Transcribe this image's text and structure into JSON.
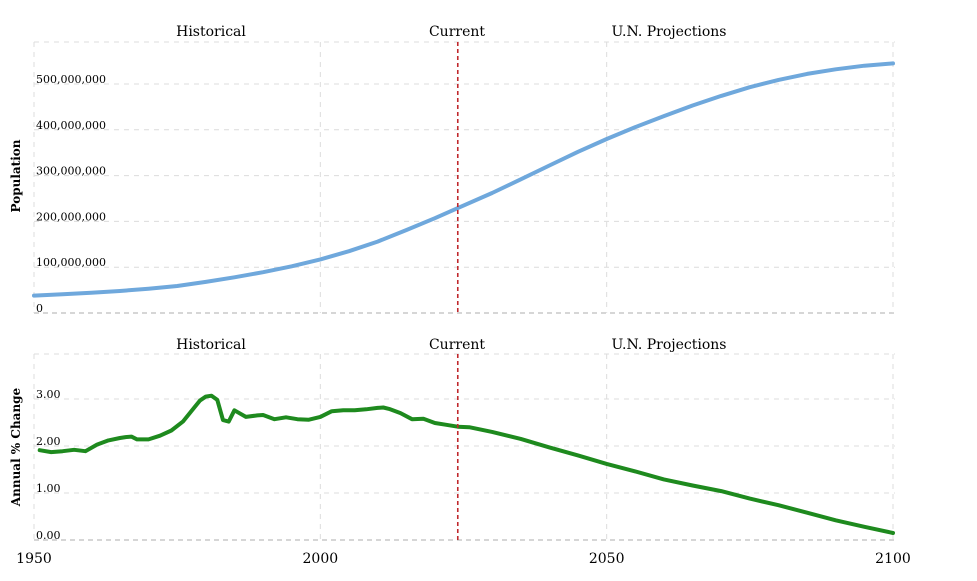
{
  "chart_data": [
    {
      "type": "line",
      "ylabel": "Population",
      "xlim": [
        1950,
        2100
      ],
      "ylim": [
        0,
        600000000
      ],
      "x_ticks": [
        "1950",
        "2000",
        "2050",
        "2100"
      ],
      "y_ticks": [
        {
          "value": 0,
          "label": "0"
        },
        {
          "value": 100000000,
          "label": "100,000,000"
        },
        {
          "value": 200000000,
          "label": "200,000,000"
        },
        {
          "value": 300000000,
          "label": "300,000,000"
        },
        {
          "value": 400000000,
          "label": "400,000,000"
        },
        {
          "value": 500000000,
          "label": "500,000,000"
        }
      ],
      "section_labels": [
        "Historical",
        "Current",
        "U.N. Projections"
      ],
      "current_year": 2024,
      "grid": true,
      "line_color": "#6fa8dc",
      "series": [
        {
          "x": [
            1950,
            1955,
            1960,
            1965,
            1970,
            1975,
            1980,
            1985,
            1990,
            1995,
            2000,
            2005,
            2010,
            2015,
            2020,
            2024,
            2030,
            2035,
            2040,
            2045,
            2050,
            2055,
            2060,
            2065,
            2070,
            2075,
            2080,
            2085,
            2090,
            2095,
            2100
          ],
          "values": [
            38000000,
            41000000,
            44000000,
            48000000,
            53000000,
            59000000,
            68000000,
            78000000,
            89000000,
            102000000,
            117000000,
            135000000,
            156000000,
            181000000,
            207000000,
            229000000,
            262000000,
            292000000,
            322000000,
            352000000,
            380000000,
            406000000,
            430000000,
            453000000,
            474000000,
            493000000,
            509000000,
            522000000,
            532000000,
            540000000,
            545000000
          ]
        }
      ]
    },
    {
      "type": "line",
      "ylabel": "Annual % Change",
      "xlim": [
        1950,
        2100
      ],
      "ylim": [
        0,
        3.0
      ],
      "x_ticks": [
        "1950",
        "2000",
        "2050",
        "2100"
      ],
      "y_ticks": [
        {
          "value": 0,
          "label": "0.00"
        },
        {
          "value": 1,
          "label": "1.00"
        },
        {
          "value": 2,
          "label": "2.00"
        },
        {
          "value": 3,
          "label": "3.00"
        }
      ],
      "section_labels": [
        "Historical",
        "Current",
        "U.N. Projections"
      ],
      "current_year": 2024,
      "grid": true,
      "line_color": "#1e8a1e",
      "series": [
        {
          "x": [
            1951,
            1953,
            1955,
            1957,
            1959,
            1961,
            1963,
            1965,
            1966,
            1967,
            1968,
            1970,
            1972,
            1974,
            1976,
            1978,
            1979,
            1980,
            1981,
            1982,
            1983,
            1984,
            1985,
            1987,
            1989,
            1990,
            1992,
            1994,
            1996,
            1998,
            2000,
            2002,
            2004,
            2006,
            2008,
            2010,
            2011,
            2012,
            2014,
            2016,
            2018,
            2020,
            2022,
            2024,
            2026,
            2028,
            2030,
            2035,
            2040,
            2045,
            2050,
            2055,
            2060,
            2065,
            2070,
            2075,
            2080,
            2085,
            2090,
            2095,
            2100
          ],
          "values": [
            1.91,
            1.87,
            1.89,
            1.92,
            1.89,
            2.03,
            2.12,
            2.17,
            2.19,
            2.2,
            2.14,
            2.14,
            2.22,
            2.33,
            2.52,
            2.82,
            2.97,
            3.05,
            3.07,
            2.98,
            2.55,
            2.52,
            2.76,
            2.62,
            2.65,
            2.66,
            2.57,
            2.61,
            2.57,
            2.56,
            2.62,
            2.74,
            2.76,
            2.76,
            2.78,
            2.81,
            2.82,
            2.79,
            2.7,
            2.57,
            2.58,
            2.49,
            2.45,
            2.41,
            2.4,
            2.35,
            2.3,
            2.15,
            1.97,
            1.8,
            1.62,
            1.46,
            1.29,
            1.16,
            1.04,
            0.88,
            0.74,
            0.58,
            0.42,
            0.28,
            0.15
          ]
        }
      ]
    }
  ]
}
